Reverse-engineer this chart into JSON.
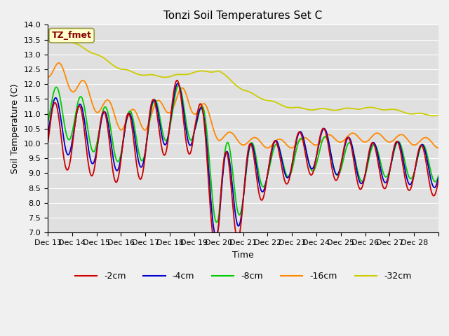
{
  "title": "Tonzi Soil Temperatures Set C",
  "xlabel": "Time",
  "ylabel": "Soil Temperature (C)",
  "ylim": [
    7.0,
    14.0
  ],
  "yticks": [
    7.0,
    7.5,
    8.0,
    8.5,
    9.0,
    9.5,
    10.0,
    10.5,
    11.0,
    11.5,
    12.0,
    12.5,
    13.0,
    13.5,
    14.0
  ],
  "xtick_labels": [
    "Dec 13",
    "Dec 14",
    "Dec 15",
    "Dec 16",
    "Dec 17",
    "Dec 18",
    "Dec 19",
    "Dec 20",
    "Dec 21",
    "Dec 22",
    "Dec 23",
    "Dec 24",
    "Dec 25",
    "Dec 26",
    "Dec 27",
    "Dec 28"
  ],
  "colors": {
    "m2cm": "#cc0000",
    "m4cm": "#0000cc",
    "m8cm": "#00cc00",
    "m16cm": "#ff8800",
    "m32cm": "#cccc00"
  },
  "legend_labels": [
    "-2cm",
    "-4cm",
    "-8cm",
    "-16cm",
    "-32cm"
  ],
  "annotation_text": "TZ_fmet",
  "annotation_color": "#880000",
  "annotation_bg": "#ffffcc",
  "title_fontsize": 11,
  "label_fontsize": 9,
  "tick_fontsize": 8,
  "n_days": 16,
  "pts_per_day": 48
}
